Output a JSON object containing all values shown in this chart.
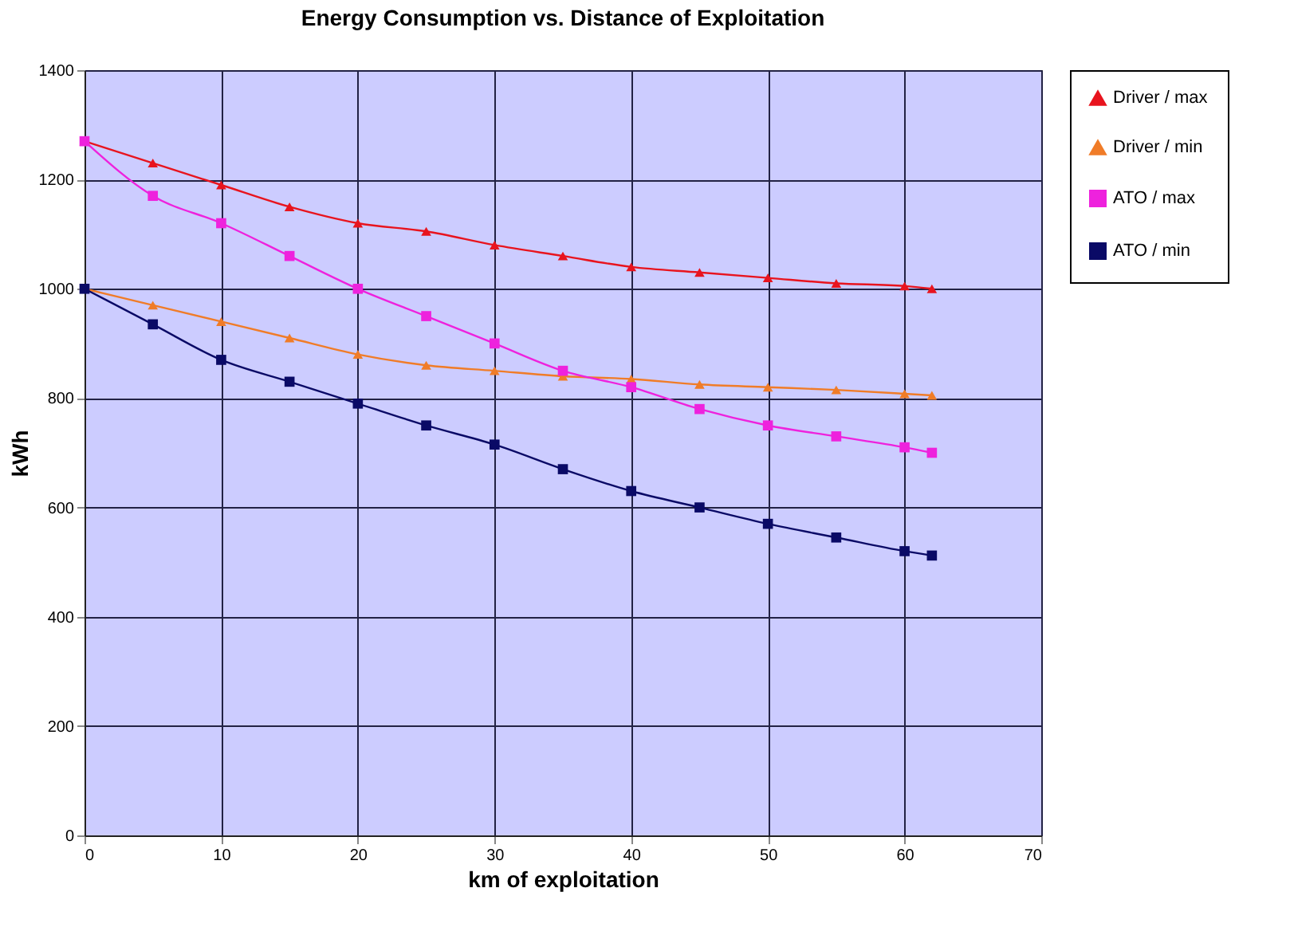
{
  "chart_data": {
    "type": "line",
    "title": "Energy Consumption  vs. Distance of Exploitation",
    "xlabel": "km of exploitation",
    "ylabel": "kWh",
    "x": [
      0,
      5,
      10,
      15,
      20,
      25,
      30,
      35,
      40,
      45,
      50,
      55,
      60,
      62
    ],
    "series": [
      {
        "name": "Driver / max",
        "color": "#e8141e",
        "marker": "triangle",
        "values": [
          1270,
          1230,
          1190,
          1150,
          1120,
          1105,
          1080,
          1060,
          1040,
          1030,
          1020,
          1010,
          1005,
          1000
        ]
      },
      {
        "name": "Driver / min",
        "color": "#f07c28",
        "marker": "triangle",
        "values": [
          1000,
          970,
          940,
          910,
          880,
          860,
          850,
          840,
          835,
          825,
          820,
          815,
          808,
          805
        ]
      },
      {
        "name": "ATO / max",
        "color": "#ee22dd",
        "marker": "square",
        "values": [
          1270,
          1170,
          1120,
          1060,
          1000,
          950,
          900,
          850,
          820,
          780,
          750,
          730,
          710,
          700
        ]
      },
      {
        "name": "ATO / min",
        "color": "#0a0a66",
        "marker": "square",
        "values": [
          1000,
          935,
          870,
          830,
          790,
          750,
          715,
          670,
          630,
          600,
          570,
          545,
          520,
          512
        ]
      }
    ],
    "xlim": [
      0,
      70
    ],
    "xticks": [
      0,
      10,
      20,
      30,
      40,
      50,
      60,
      70
    ],
    "ylim": [
      0,
      1400
    ],
    "yticks": [
      0,
      200,
      400,
      600,
      800,
      1000,
      1200,
      1400
    ],
    "grid": true,
    "legend": "right"
  }
}
